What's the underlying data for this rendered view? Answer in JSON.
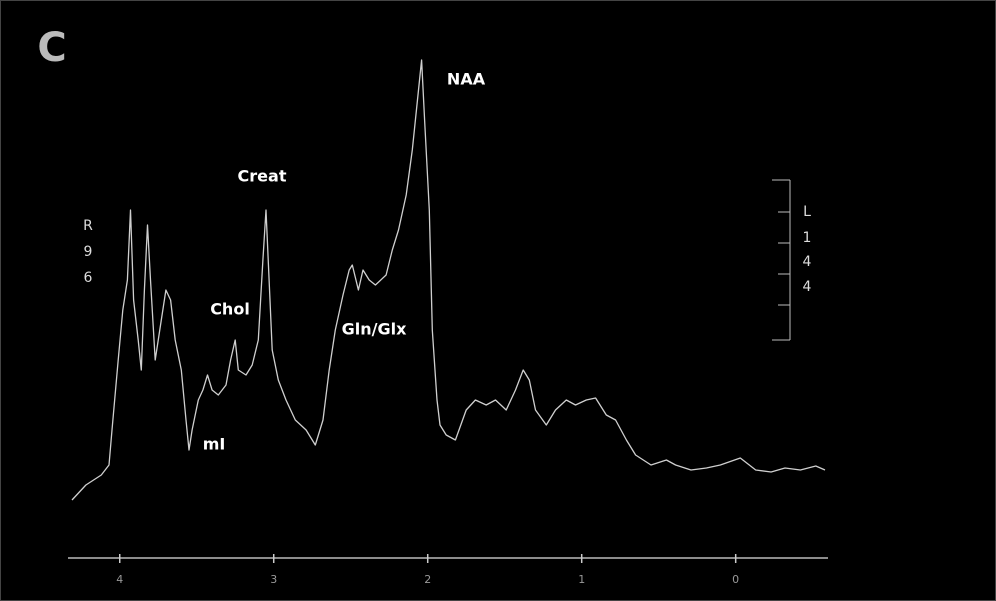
{
  "chart_data": {
    "type": "line",
    "panel_label": "C",
    "annotations": [
      "NAA",
      "Creat",
      "Chol",
      "Gln/Glx",
      "mI"
    ],
    "left_label": [
      "R",
      "9",
      "6"
    ],
    "right_label": [
      "L",
      "1",
      "4",
      "4"
    ],
    "xlim": [
      4.31,
      -0.58
    ],
    "xticks": [
      4,
      3,
      2,
      1,
      0
    ],
    "series": [
      {
        "color": "#cfcfcf",
        "x": [
          4.31,
          4.22,
          4.12,
          4.07,
          4.05,
          4.01,
          3.98,
          3.95,
          3.93,
          3.91,
          3.88,
          3.86,
          3.84,
          3.82,
          3.8,
          3.77,
          3.73,
          3.7,
          3.67,
          3.64,
          3.6,
          3.57,
          3.55,
          3.53,
          3.49,
          3.46,
          3.43,
          3.4,
          3.36,
          3.31,
          3.28,
          3.25,
          3.23,
          3.18,
          3.14,
          3.1,
          3.07,
          3.05,
          3.03,
          3.01,
          2.97,
          2.92,
          2.86,
          2.79,
          2.73,
          2.68,
          2.64,
          2.6,
          2.55,
          2.51,
          2.49,
          2.45,
          2.42,
          2.38,
          2.34,
          2.27,
          2.23,
          2.19,
          2.14,
          2.1,
          2.06,
          2.04,
          2.02,
          1.99,
          1.97,
          1.94,
          1.92,
          1.88,
          1.82,
          1.75,
          1.69,
          1.62,
          1.56,
          1.49,
          1.43,
          1.38,
          1.34,
          1.3,
          1.23,
          1.17,
          1.1,
          1.04,
          0.97,
          0.91,
          0.84,
          0.78,
          0.71,
          0.65,
          0.55,
          0.45,
          0.39,
          0.29,
          0.19,
          0.1,
          -0.03,
          -0.13,
          -0.23,
          -0.32,
          -0.42,
          -0.52,
          -0.58
        ],
        "values": [
          5,
          8.75,
          11.25,
          13.75,
          22.5,
          40,
          52.5,
          60,
          77.5,
          55,
          45,
          37.5,
          57.5,
          73.75,
          60,
          40,
          50,
          57.5,
          55,
          45,
          37.5,
          25,
          17.5,
          22.5,
          30,
          32.5,
          36.25,
          32.5,
          31.25,
          33.75,
          40,
          45,
          37.5,
          36.25,
          38.75,
          45,
          65,
          77.5,
          60,
          42.5,
          35,
          30,
          25,
          22.5,
          18.75,
          25,
          37.5,
          47.5,
          56.25,
          62.5,
          63.75,
          57.5,
          62.5,
          60,
          58.75,
          61.25,
          67.5,
          72.5,
          81.25,
          92.5,
          107.5,
          115,
          100,
          77.5,
          47.5,
          30,
          23.75,
          21.25,
          20,
          27.5,
          30,
          28.75,
          30,
          27.5,
          32.5,
          37.5,
          35,
          27.5,
          23.75,
          27.5,
          30,
          28.75,
          30,
          30.5,
          26.25,
          25,
          20,
          16.25,
          13.75,
          15,
          13.75,
          12.5,
          13,
          13.75,
          15.5,
          12.5,
          12,
          13,
          12.5,
          13.5,
          12.5
        ]
      }
    ]
  }
}
